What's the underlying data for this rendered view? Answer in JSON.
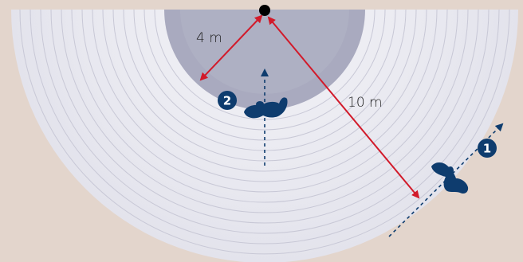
{
  "labels": {
    "inner_distance": "4 m",
    "outer_distance": "10 m",
    "badge_one": "1",
    "badge_two": "2"
  },
  "colors": {
    "background": "#e3d5cc",
    "outer_zone": "#e6e6ef",
    "outer_zone_bright": "#f2f2f7",
    "ring_line": "#c9c9d6",
    "inner_zone": "#a9aabf",
    "measure_line": "#d21a2a",
    "figure": "#0e3c6e",
    "anchor_dot": "#000000",
    "label_text": "#222222"
  },
  "icons": [
    "pivot-dot",
    "swimmer-icon",
    "direction-arrow"
  ]
}
